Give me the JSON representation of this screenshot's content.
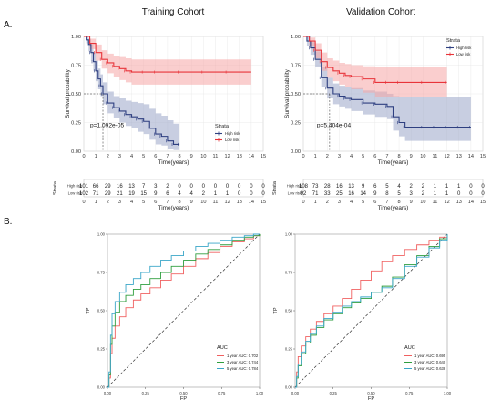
{
  "figure": {
    "label_a": "A.",
    "label_b": "B."
  },
  "colors": {
    "high": "#2e3f80",
    "low": "#e8343a",
    "roc1": "#f06060",
    "roc3": "#2e9e3e",
    "roc5": "#3aa6c8",
    "ci_high": "#9aa6c8",
    "ci_low": "#f6a6a6"
  },
  "chart_data": [
    {
      "type": "line",
      "id": "km_training",
      "title": "Training Cohort",
      "xlabel": "Time(years)",
      "ylabel": "Survival probability",
      "xlim": [
        0,
        15
      ],
      "ylim": [
        0,
        1
      ],
      "x_ticks": [
        "0",
        "1",
        "2",
        "3",
        "4",
        "5",
        "6",
        "7",
        "8",
        "9",
        "10",
        "11",
        "12",
        "13",
        "14",
        "15"
      ],
      "y_ticks": [
        "0.00",
        "0.25",
        "0.50",
        "0.75",
        "1.00"
      ],
      "legend_title": "Strata",
      "legend_position": "right",
      "pvalue": "p=1.092e-05",
      "median_marker": {
        "x": 1.6,
        "y": 0.5
      },
      "series": [
        {
          "name": "High risk",
          "x": [
            0,
            0.2,
            0.4,
            0.6,
            0.8,
            1,
            1.2,
            1.4,
            1.6,
            2,
            2.5,
            3,
            3.5,
            4,
            4.5,
            5,
            5.5,
            6,
            6.5,
            7,
            7.5,
            8
          ],
          "y": [
            1.0,
            0.97,
            0.93,
            0.86,
            0.78,
            0.7,
            0.63,
            0.57,
            0.5,
            0.42,
            0.38,
            0.35,
            0.32,
            0.3,
            0.28,
            0.26,
            0.2,
            0.15,
            0.13,
            0.09,
            0.06,
            0.06
          ],
          "ci_upper": [
            1.0,
            1.0,
            0.98,
            0.93,
            0.86,
            0.79,
            0.72,
            0.67,
            0.6,
            0.52,
            0.48,
            0.46,
            0.44,
            0.43,
            0.42,
            0.41,
            0.37,
            0.33,
            0.31,
            0.27,
            0.24,
            0.24
          ],
          "ci_lower": [
            1.0,
            0.94,
            0.87,
            0.79,
            0.7,
            0.61,
            0.54,
            0.48,
            0.41,
            0.33,
            0.29,
            0.25,
            0.22,
            0.2,
            0.17,
            0.15,
            0.1,
            0.06,
            0.05,
            0.02,
            0.01,
            0.01
          ]
        },
        {
          "name": "Low risk",
          "x": [
            0,
            0.5,
            1,
            1.5,
            2,
            2.5,
            3,
            3.5,
            4,
            5,
            6,
            8,
            10,
            12,
            14
          ],
          "y": [
            1.0,
            0.94,
            0.86,
            0.8,
            0.77,
            0.74,
            0.72,
            0.7,
            0.69,
            0.69,
            0.69,
            0.69,
            0.69,
            0.69,
            0.69
          ],
          "ci_upper": [
            1.0,
            0.98,
            0.93,
            0.88,
            0.85,
            0.83,
            0.82,
            0.81,
            0.8,
            0.8,
            0.8,
            0.8,
            0.8,
            0.8,
            0.8
          ],
          "ci_lower": [
            1.0,
            0.89,
            0.79,
            0.72,
            0.68,
            0.65,
            0.62,
            0.6,
            0.58,
            0.58,
            0.58,
            0.58,
            0.58,
            0.58,
            0.58
          ]
        }
      ],
      "risk_table": {
        "ylabel": "Strata",
        "xlabel": "Time(years)",
        "rows": [
          {
            "name": "High risk",
            "values": [
              "101",
              "66",
              "29",
              "16",
              "13",
              "7",
              "3",
              "2",
              "0",
              "0",
              "0",
              "0",
              "0",
              "0",
              "0",
              "0"
            ]
          },
          {
            "name": "Low risk",
            "values": [
              "102",
              "71",
              "29",
              "21",
              "19",
              "15",
              "9",
              "6",
              "4",
              "4",
              "2",
              "1",
              "1",
              "0",
              "0",
              "0"
            ]
          }
        ]
      }
    },
    {
      "type": "line",
      "id": "km_validation",
      "title": "Validation Cohort",
      "xlabel": "Time(years)",
      "ylabel": "Survival probability",
      "xlim": [
        0,
        15
      ],
      "ylim": [
        0,
        1
      ],
      "x_ticks": [
        "0",
        "1",
        "2",
        "3",
        "4",
        "5",
        "6",
        "7",
        "8",
        "9",
        "10",
        "11",
        "12",
        "13",
        "14",
        "15"
      ],
      "y_ticks": [
        "0.00",
        "0.25",
        "0.50",
        "0.75",
        "1.00"
      ],
      "legend_title": "Strata",
      "legend_position": "top-right",
      "pvalue": "p=5.404e-04",
      "median_marker": {
        "x": 2.2,
        "y": 0.5
      },
      "series": [
        {
          "name": "High risk",
          "x": [
            0,
            0.3,
            0.6,
            1,
            1.5,
            2,
            2.5,
            3,
            3.5,
            4,
            5,
            6,
            7,
            7.5,
            8,
            8.5,
            10,
            11,
            12,
            13,
            14
          ],
          "y": [
            1.0,
            0.96,
            0.9,
            0.8,
            0.64,
            0.55,
            0.5,
            0.48,
            0.46,
            0.45,
            0.42,
            0.41,
            0.39,
            0.3,
            0.25,
            0.21,
            0.21,
            0.21,
            0.21,
            0.21,
            0.21
          ],
          "ci_upper": [
            1.0,
            1.0,
            0.95,
            0.87,
            0.73,
            0.64,
            0.59,
            0.57,
            0.56,
            0.55,
            0.53,
            0.52,
            0.5,
            0.48,
            0.47,
            0.47,
            0.47,
            0.47,
            0.47,
            0.47,
            0.47
          ],
          "ci_lower": [
            1.0,
            0.92,
            0.84,
            0.73,
            0.56,
            0.46,
            0.41,
            0.39,
            0.37,
            0.35,
            0.32,
            0.3,
            0.28,
            0.18,
            0.13,
            0.09,
            0.09,
            0.09,
            0.09,
            0.09,
            0.09
          ]
        },
        {
          "name": "Low risk",
          "x": [
            0,
            0.5,
            1,
            1.5,
            2,
            2.5,
            3,
            3.5,
            4,
            5,
            6,
            7,
            8,
            10,
            12
          ],
          "y": [
            1.0,
            0.96,
            0.88,
            0.78,
            0.73,
            0.7,
            0.68,
            0.66,
            0.65,
            0.63,
            0.6,
            0.6,
            0.6,
            0.6,
            0.6
          ],
          "ci_upper": [
            1.0,
            0.99,
            0.94,
            0.86,
            0.81,
            0.79,
            0.77,
            0.76,
            0.75,
            0.74,
            0.73,
            0.73,
            0.73,
            0.73,
            0.73
          ],
          "ci_lower": [
            1.0,
            0.92,
            0.81,
            0.7,
            0.64,
            0.61,
            0.58,
            0.56,
            0.54,
            0.51,
            0.47,
            0.47,
            0.47,
            0.47,
            0.47
          ]
        }
      ],
      "risk_table": {
        "ylabel": "Strata",
        "xlabel": "Time(years)",
        "rows": [
          {
            "name": "High risk",
            "values": [
              "108",
              "73",
              "28",
              "16",
              "13",
              "9",
              "6",
              "5",
              "4",
              "2",
              "2",
              "1",
              "1",
              "1",
              "0",
              "0"
            ]
          },
          {
            "name": "Low risk",
            "values": [
              "92",
              "71",
              "33",
              "25",
              "16",
              "14",
              "9",
              "8",
              "5",
              "3",
              "2",
              "1",
              "1",
              "0",
              "0",
              "0"
            ]
          }
        ]
      }
    },
    {
      "type": "line",
      "id": "roc_training",
      "xlabel": "FP",
      "ylabel": "TP",
      "xlim": [
        0,
        1
      ],
      "ylim": [
        0,
        1
      ],
      "x_ticks": [
        "0.00",
        "0.25",
        "0.50",
        "0.75",
        "1.00"
      ],
      "y_ticks": [
        "0.00",
        "0.25",
        "0.50",
        "0.75",
        "1.00"
      ],
      "legend_title": "AUC",
      "legend_position": "bottom-right",
      "series": [
        {
          "name": "1 year AUC: 0.702",
          "x": [
            0,
            0.01,
            0.02,
            0.03,
            0.05,
            0.08,
            0.12,
            0.17,
            0.22,
            0.28,
            0.35,
            0.42,
            0.5,
            0.58,
            0.66,
            0.74,
            0.82,
            0.9,
            0.96,
            1
          ],
          "y": [
            0,
            0.06,
            0.22,
            0.32,
            0.4,
            0.46,
            0.52,
            0.57,
            0.61,
            0.65,
            0.7,
            0.74,
            0.79,
            0.84,
            0.88,
            0.92,
            0.95,
            0.97,
            0.99,
            1
          ]
        },
        {
          "name": "3 year AUC: 0.744",
          "x": [
            0,
            0.01,
            0.02,
            0.03,
            0.05,
            0.08,
            0.12,
            0.17,
            0.22,
            0.28,
            0.35,
            0.42,
            0.5,
            0.58,
            0.66,
            0.74,
            0.82,
            0.9,
            0.96,
            1
          ],
          "y": [
            0,
            0.08,
            0.28,
            0.4,
            0.49,
            0.56,
            0.6,
            0.64,
            0.67,
            0.71,
            0.75,
            0.79,
            0.83,
            0.87,
            0.9,
            0.93,
            0.96,
            0.98,
            0.99,
            1
          ]
        },
        {
          "name": "5 year AUC: 0.784",
          "x": [
            0,
            0.01,
            0.02,
            0.03,
            0.05,
            0.08,
            0.12,
            0.17,
            0.22,
            0.28,
            0.35,
            0.42,
            0.5,
            0.58,
            0.66,
            0.74,
            0.82,
            0.9,
            0.96,
            1
          ],
          "y": [
            0,
            0.1,
            0.34,
            0.48,
            0.56,
            0.62,
            0.67,
            0.71,
            0.75,
            0.79,
            0.83,
            0.86,
            0.89,
            0.92,
            0.94,
            0.96,
            0.98,
            0.99,
            1,
            1
          ]
        }
      ]
    },
    {
      "type": "line",
      "id": "roc_validation",
      "xlabel": "FP",
      "ylabel": "TP",
      "xlim": [
        0,
        1
      ],
      "ylim": [
        0,
        1
      ],
      "x_ticks": [
        "0.00",
        "0.25",
        "0.50",
        "0.75",
        "1.00"
      ],
      "y_ticks": [
        "0.00",
        "0.25",
        "0.50",
        "0.75",
        "1.00"
      ],
      "legend_title": "AUC",
      "legend_position": "bottom-right",
      "series": [
        {
          "name": "1 year AUC: 0.695",
          "x": [
            0,
            0.01,
            0.02,
            0.04,
            0.07,
            0.1,
            0.14,
            0.19,
            0.25,
            0.31,
            0.37,
            0.43,
            0.5,
            0.57,
            0.64,
            0.72,
            0.8,
            0.88,
            0.95,
            1
          ],
          "y": [
            0,
            0.1,
            0.2,
            0.27,
            0.33,
            0.38,
            0.43,
            0.48,
            0.53,
            0.58,
            0.64,
            0.7,
            0.76,
            0.82,
            0.86,
            0.9,
            0.93,
            0.96,
            0.98,
            1
          ]
        },
        {
          "name": "3 year AUC: 0.640",
          "x": [
            0,
            0.01,
            0.02,
            0.04,
            0.07,
            0.1,
            0.14,
            0.19,
            0.25,
            0.31,
            0.37,
            0.43,
            0.5,
            0.57,
            0.64,
            0.72,
            0.8,
            0.88,
            0.95,
            1
          ],
          "y": [
            0,
            0.06,
            0.14,
            0.22,
            0.29,
            0.34,
            0.39,
            0.44,
            0.48,
            0.52,
            0.55,
            0.58,
            0.62,
            0.66,
            0.72,
            0.8,
            0.86,
            0.92,
            0.97,
            1
          ]
        },
        {
          "name": "5 year AUC: 0.638",
          "x": [
            0,
            0.01,
            0.02,
            0.04,
            0.07,
            0.1,
            0.14,
            0.19,
            0.25,
            0.31,
            0.37,
            0.43,
            0.5,
            0.57,
            0.64,
            0.72,
            0.8,
            0.88,
            0.95,
            1
          ],
          "y": [
            0,
            0.07,
            0.15,
            0.23,
            0.3,
            0.35,
            0.4,
            0.45,
            0.49,
            0.53,
            0.56,
            0.59,
            0.62,
            0.65,
            0.71,
            0.79,
            0.85,
            0.91,
            0.96,
            1
          ]
        }
      ]
    }
  ]
}
